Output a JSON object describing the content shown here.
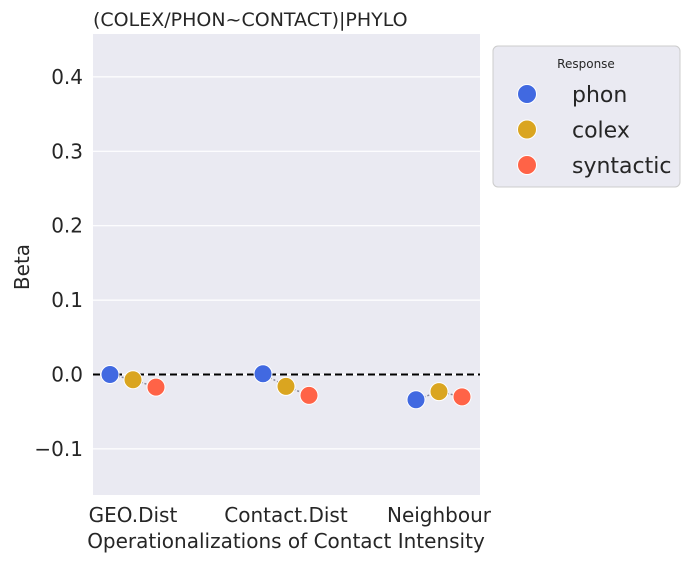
{
  "chart_data": {
    "type": "scatter",
    "title": "(COLEX/PHON~CONTACT)|PHYLO",
    "xlabel": "Operationalizations of Contact Intensity",
    "ylabel": "Beta",
    "categories": [
      "GEO.Dist",
      "Contact.Dist",
      "Neighbour"
    ],
    "ylim": [
      -0.16,
      0.46
    ],
    "yticks": [
      -0.1,
      0.0,
      0.1,
      0.2,
      0.3,
      0.4
    ],
    "ytick_labels": [
      "−0.1",
      "0.0",
      "0.1",
      "0.2",
      "0.3",
      "0.4"
    ],
    "reference_line": 0.0,
    "grid": true,
    "background": "#EAEAF2",
    "legend": {
      "title": "Response",
      "placement": "outside-top-right"
    },
    "series": [
      {
        "name": "phon",
        "color": "#4169E1",
        "values": [
          0.0,
          0.001,
          -0.034
        ]
      },
      {
        "name": "colex",
        "color": "#DAA520",
        "values": [
          -0.007,
          -0.016,
          -0.023
        ]
      },
      {
        "name": "syntactic",
        "color": "#FF6347",
        "values": [
          -0.017,
          -0.028,
          -0.03
        ]
      }
    ]
  }
}
